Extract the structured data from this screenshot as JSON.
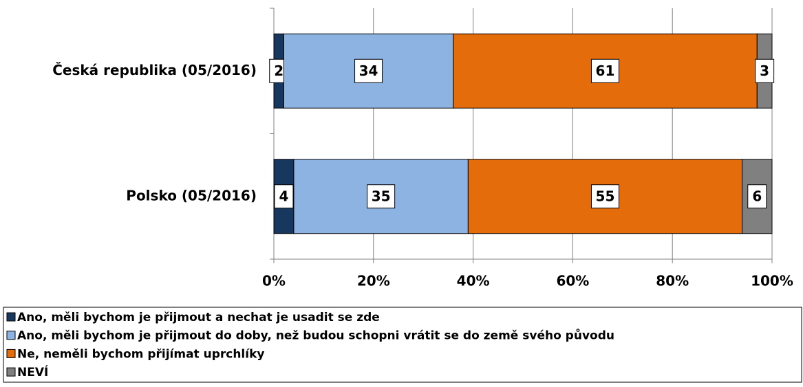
{
  "chart_data": {
    "type": "bar",
    "orientation": "horizontal",
    "stacked": true,
    "categories": [
      "Česká republika (05/2016)",
      "Polsko (05/2016)"
    ],
    "series": [
      {
        "name": "Ano, měli bychom je přijmout a nechat je usadit se zde",
        "color": "#17375e",
        "values": [
          2,
          4
        ]
      },
      {
        "name": "Ano, měli bychom je přijmout do doby, než budou schopni vrátit se do země svého původu",
        "color": "#8db3e2",
        "values": [
          34,
          35
        ]
      },
      {
        "name": "Ne, neměli bychom přijímat uprchlíky",
        "color": "#e46c0a",
        "values": [
          61,
          55
        ]
      },
      {
        "name": "NEVÍ",
        "color": "#808080",
        "values": [
          3,
          6
        ]
      }
    ],
    "xlim": [
      0,
      100
    ],
    "xticks": [
      {
        "value": 0,
        "label": "0%"
      },
      {
        "value": 20,
        "label": "20%"
      },
      {
        "value": 40,
        "label": "40%"
      },
      {
        "value": 60,
        "label": "60%"
      },
      {
        "value": 80,
        "label": "80%"
      },
      {
        "value": 100,
        "label": "100%"
      }
    ],
    "grid": true,
    "legend": "bottom"
  }
}
